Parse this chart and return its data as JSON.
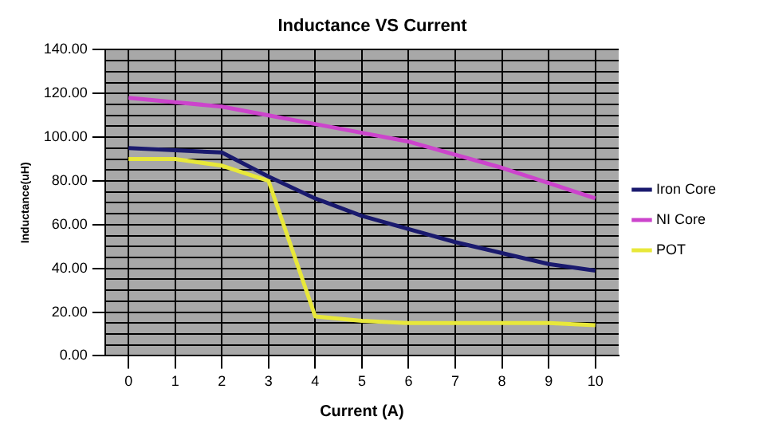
{
  "chart_data": {
    "type": "line",
    "title": "Inductance VS Current",
    "xlabel": "Current (A)",
    "ylabel": "Inductance(uH)",
    "categories": [
      "0",
      "1",
      "2",
      "3",
      "4",
      "5",
      "6",
      "7",
      "8",
      "9",
      "10"
    ],
    "series": [
      {
        "name": "Iron Core",
        "color": "#1a1a6e",
        "values": [
          95,
          94,
          93,
          82,
          72,
          64,
          58,
          52,
          47,
          42,
          39
        ]
      },
      {
        "name": "NI Core",
        "color": "#cc44cc",
        "values": [
          118,
          116,
          114,
          110,
          106,
          102,
          98,
          92,
          86,
          79,
          72
        ]
      },
      {
        "name": "POT",
        "color": "#e8e83a",
        "values": [
          90,
          90,
          87,
          80,
          18,
          16,
          15,
          15,
          15,
          15,
          14
        ]
      }
    ],
    "ylim": [
      0,
      140
    ],
    "yticks": [
      {
        "value": 0,
        "label": "0.00"
      },
      {
        "value": 5,
        "label": null
      },
      {
        "value": 10,
        "label": null
      },
      {
        "value": 15,
        "label": null
      },
      {
        "value": 20,
        "label": "20.00"
      },
      {
        "value": 25,
        "label": null
      },
      {
        "value": 30,
        "label": null
      },
      {
        "value": 35,
        "label": null
      },
      {
        "value": 40,
        "label": "40.00"
      },
      {
        "value": 45,
        "label": null
      },
      {
        "value": 50,
        "label": null
      },
      {
        "value": 55,
        "label": null
      },
      {
        "value": 60,
        "label": "60.00"
      },
      {
        "value": 65,
        "label": null
      },
      {
        "value": 70,
        "label": null
      },
      {
        "value": 75,
        "label": null
      },
      {
        "value": 80,
        "label": "80.00"
      },
      {
        "value": 85,
        "label": null
      },
      {
        "value": 90,
        "label": null
      },
      {
        "value": 95,
        "label": null
      },
      {
        "value": 100,
        "label": "100.00"
      },
      {
        "value": 105,
        "label": null
      },
      {
        "value": 110,
        "label": null
      },
      {
        "value": 115,
        "label": null
      },
      {
        "value": 120,
        "label": "120.00"
      },
      {
        "value": 125,
        "label": null
      },
      {
        "value": 130,
        "label": null
      },
      {
        "value": 135,
        "label": null
      },
      {
        "value": 140,
        "label": "140.00"
      }
    ],
    "grid": true,
    "legend": "right",
    "marker": "none",
    "line_style": "solid"
  }
}
